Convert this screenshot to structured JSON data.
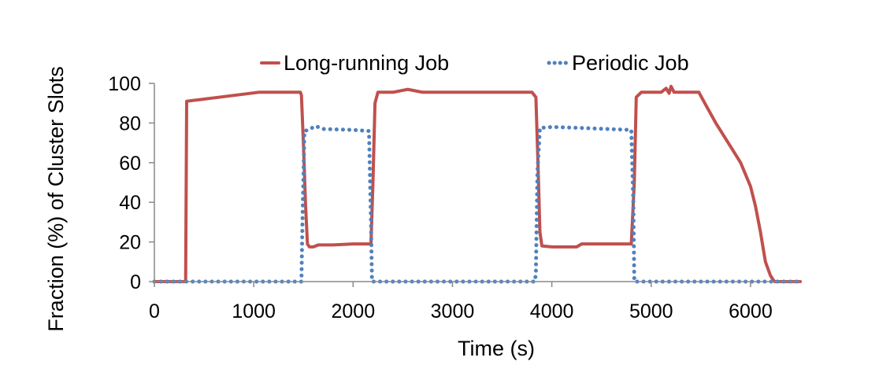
{
  "chart_data": {
    "type": "line",
    "title": "",
    "xlabel": "Time (s)",
    "ylabel": "Fraction (%) of Cluster Slots",
    "xlim": [
      0,
      6500
    ],
    "ylim": [
      0,
      100
    ],
    "xticks": [
      0,
      1000,
      2000,
      3000,
      4000,
      5000,
      6000
    ],
    "yticks": [
      0,
      20,
      40,
      60,
      80,
      100
    ],
    "grid": false,
    "legend": "top-center",
    "series": [
      {
        "name": "Long-running Job",
        "color": "#c0504d",
        "style": "solid",
        "points": [
          [
            0,
            0
          ],
          [
            300,
            0
          ],
          [
            315,
            0
          ],
          [
            325,
            91
          ],
          [
            1050,
            95.5
          ],
          [
            1100,
            95.5
          ],
          [
            1470,
            95.5
          ],
          [
            1480,
            94
          ],
          [
            1500,
            70
          ],
          [
            1520,
            40
          ],
          [
            1540,
            19
          ],
          [
            1560,
            17.5
          ],
          [
            1600,
            17.5
          ],
          [
            1650,
            18.5
          ],
          [
            1800,
            18.5
          ],
          [
            2000,
            19
          ],
          [
            2180,
            19
          ],
          [
            2200,
            50
          ],
          [
            2220,
            90
          ],
          [
            2250,
            95.5
          ],
          [
            2400,
            95.5
          ],
          [
            2550,
            97
          ],
          [
            2700,
            95.5
          ],
          [
            3000,
            95.5
          ],
          [
            3500,
            95.5
          ],
          [
            3800,
            95.5
          ],
          [
            3840,
            93
          ],
          [
            3860,
            60
          ],
          [
            3880,
            25
          ],
          [
            3900,
            18
          ],
          [
            4000,
            17.5
          ],
          [
            4250,
            17.5
          ],
          [
            4300,
            19
          ],
          [
            4700,
            19
          ],
          [
            4800,
            19
          ],
          [
            4830,
            50
          ],
          [
            4850,
            93
          ],
          [
            4900,
            95.5
          ],
          [
            5100,
            95.5
          ],
          [
            5150,
            97.5
          ],
          [
            5180,
            95
          ],
          [
            5200,
            98.5
          ],
          [
            5230,
            95.5
          ],
          [
            5480,
            95.5
          ],
          [
            5550,
            89
          ],
          [
            5650,
            80
          ],
          [
            5800,
            68
          ],
          [
            5900,
            60
          ],
          [
            6000,
            48
          ],
          [
            6050,
            38
          ],
          [
            6100,
            25
          ],
          [
            6150,
            10
          ],
          [
            6200,
            3
          ],
          [
            6240,
            0
          ],
          [
            6500,
            0
          ]
        ]
      },
      {
        "name": "Periodic Job",
        "color": "#4f81bd",
        "style": "dotted",
        "points": [
          [
            0,
            0
          ],
          [
            1480,
            0
          ],
          [
            1490,
            30
          ],
          [
            1510,
            76
          ],
          [
            1550,
            76.5
          ],
          [
            1620,
            78.5
          ],
          [
            1700,
            77
          ],
          [
            2000,
            76.5
          ],
          [
            2160,
            76
          ],
          [
            2180,
            30
          ],
          [
            2190,
            0
          ],
          [
            3830,
            0
          ],
          [
            3840,
            5
          ],
          [
            3855,
            55
          ],
          [
            3880,
            77.5
          ],
          [
            4000,
            78
          ],
          [
            4300,
            77.5
          ],
          [
            4800,
            76.5
          ],
          [
            4820,
            40
          ],
          [
            4830,
            0
          ],
          [
            6500,
            0
          ]
        ]
      }
    ]
  }
}
